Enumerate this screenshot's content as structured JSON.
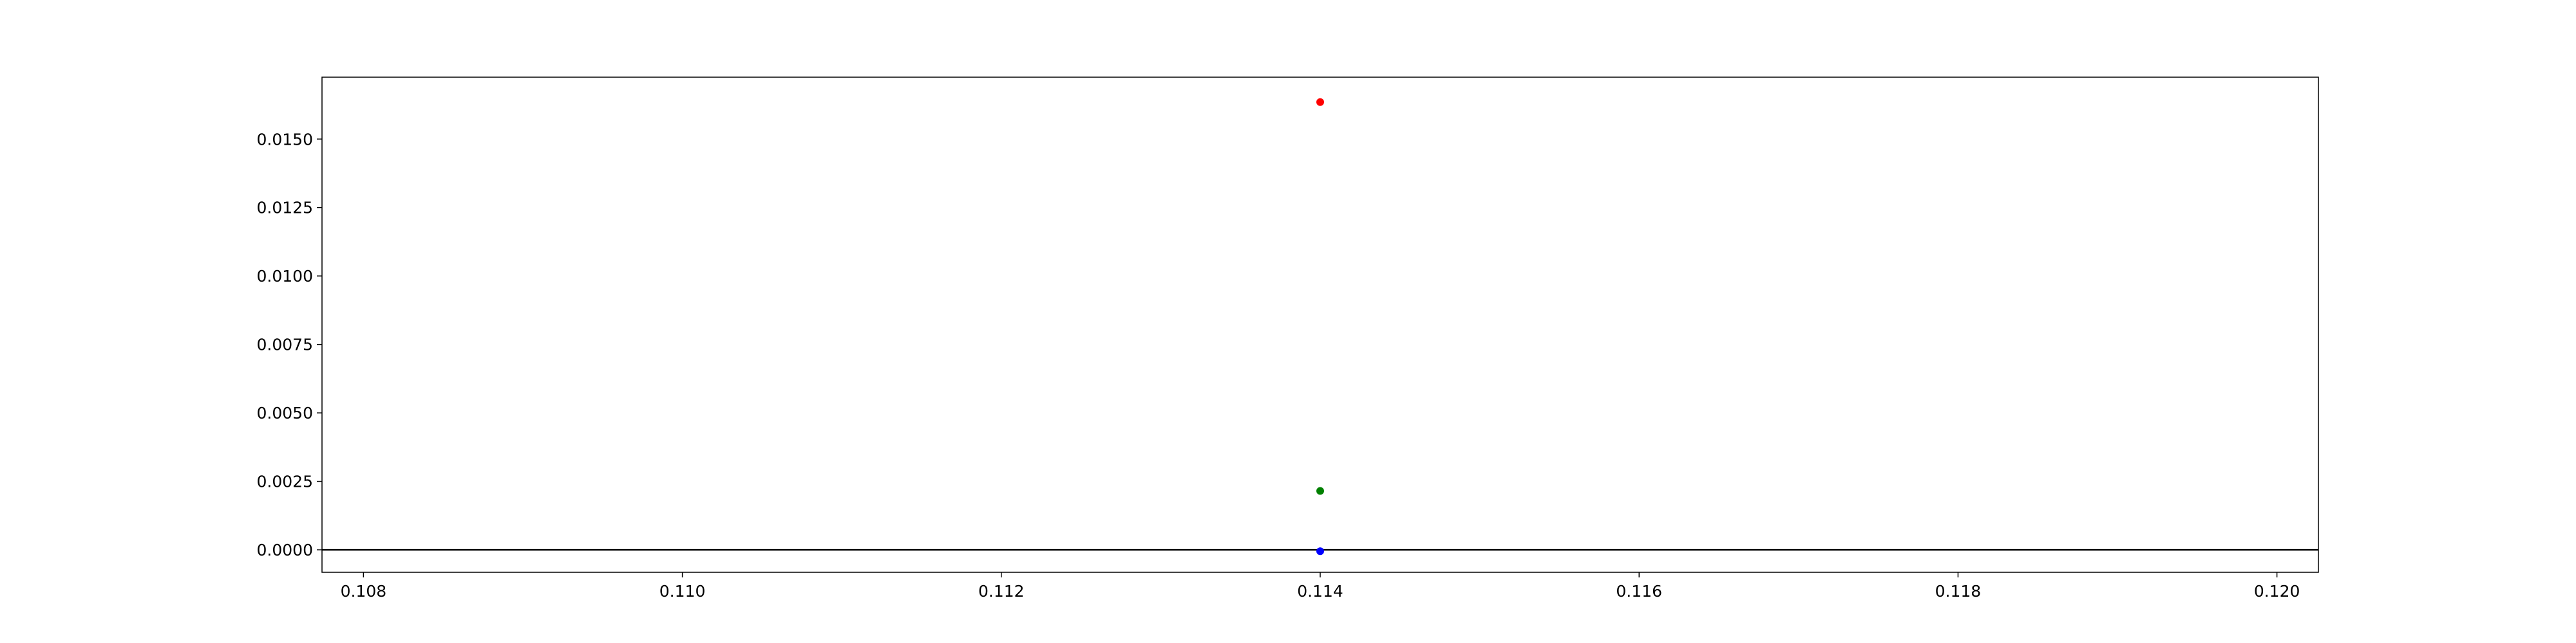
{
  "chart_data": {
    "type": "scatter",
    "title": "",
    "xlabel": "",
    "ylabel": "",
    "xlim": [
      0.10774,
      0.12026
    ],
    "ylim": [
      -0.00082,
      0.01726
    ],
    "grid": false,
    "xticks": [
      0.108,
      0.11,
      0.112,
      0.114,
      0.116,
      0.118,
      0.12
    ],
    "xtick_labels": [
      "0.108",
      "0.110",
      "0.112",
      "0.114",
      "0.116",
      "0.118",
      "0.120"
    ],
    "yticks": [
      0.0,
      0.0025,
      0.005,
      0.0075,
      0.01,
      0.0125,
      0.015
    ],
    "ytick_labels": [
      "0.0000",
      "0.0025",
      "0.0050",
      "0.0075",
      "0.0100",
      "0.0125",
      "0.0150"
    ],
    "hline": {
      "y": 0,
      "color": "#000000"
    },
    "series": [
      {
        "color": "#ff0000",
        "points": [
          {
            "x": 0.114,
            "y": 0.01635
          }
        ]
      },
      {
        "color": "#008000",
        "points": [
          {
            "x": 0.114,
            "y": 0.00215
          }
        ]
      },
      {
        "color": "#0000ff",
        "points": [
          {
            "x": 0.114,
            "y": -5e-05
          }
        ]
      }
    ]
  }
}
